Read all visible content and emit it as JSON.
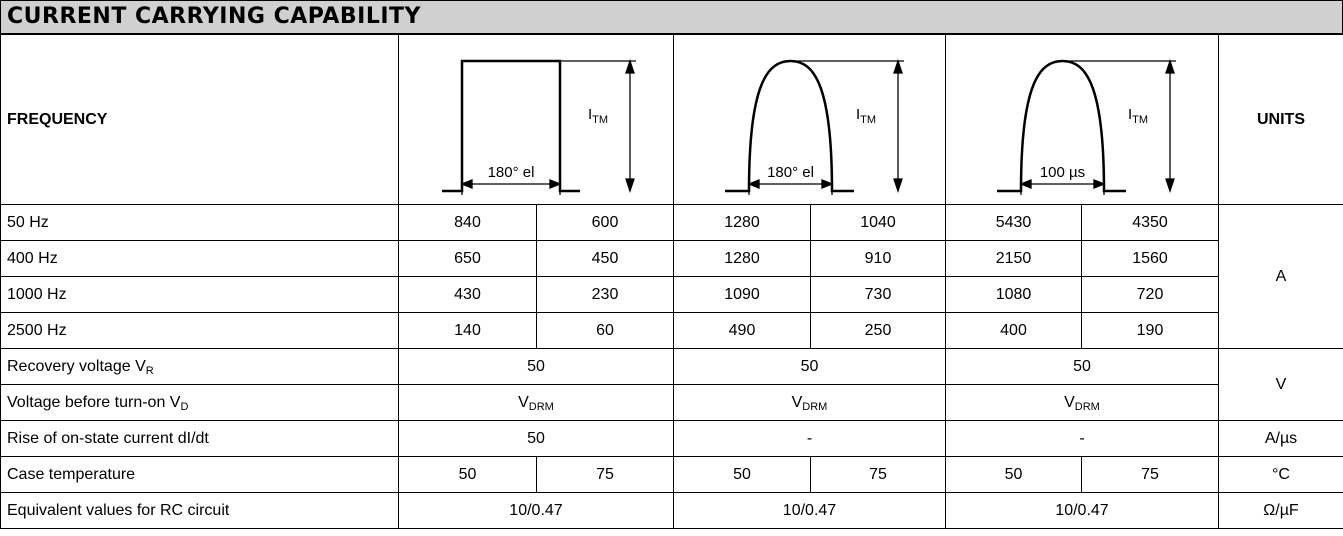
{
  "title": "CURRENT CARRYING CAPABILITY",
  "header": {
    "frequency": "FREQUENCY",
    "units": "UNITS",
    "waveforms": [
      {
        "amplitude": {
          "base": "I",
          "sub": "TM"
        },
        "width": "180° el"
      },
      {
        "amplitude": {
          "base": "I",
          "sub": "TM"
        },
        "width": "180° el"
      },
      {
        "amplitude": {
          "base": "I",
          "sub": "TM"
        },
        "width": "100 µs"
      }
    ]
  },
  "frequency_rows": [
    {
      "label": "50 Hz",
      "values": [
        840,
        600,
        1280,
        1040,
        5430,
        4350
      ]
    },
    {
      "label": "400 Hz",
      "values": [
        650,
        450,
        1280,
        910,
        2150,
        1560
      ]
    },
    {
      "label": "1000 Hz",
      "values": [
        430,
        230,
        1090,
        730,
        1080,
        720
      ]
    },
    {
      "label": "2500 Hz",
      "values": [
        140,
        60,
        490,
        250,
        400,
        190
      ]
    }
  ],
  "frequency_unit": "A",
  "voltage_rows": [
    {
      "label": {
        "base": "Recovery voltage V",
        "sub": "R"
      },
      "values": [
        50,
        50,
        50
      ]
    },
    {
      "label": {
        "base": "Voltage before turn-on V",
        "sub": "D"
      },
      "values": [
        {
          "base": "V",
          "sub": "DRM"
        },
        {
          "base": "V",
          "sub": "DRM"
        },
        {
          "base": "V",
          "sub": "DRM"
        }
      ]
    }
  ],
  "voltage_unit": "V",
  "rise_row": {
    "label": "Rise of on-state current dI/dt",
    "values": [
      50,
      "-",
      "-"
    ],
    "unit": "A/µs"
  },
  "case_row": {
    "label": "Case temperature",
    "values": [
      50,
      75,
      50,
      75,
      50,
      75
    ],
    "unit": "°C"
  },
  "rc_row": {
    "label": "Equivalent values for RC circuit",
    "values": [
      "10/0.47",
      "10/0.47",
      "10/0.47"
    ],
    "unit": "Ω/µF"
  }
}
